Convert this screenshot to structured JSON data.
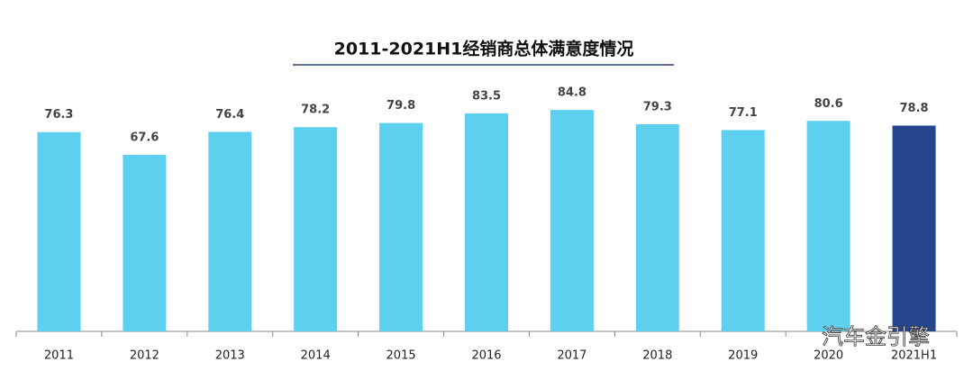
{
  "chart_data": {
    "type": "bar",
    "title": "2011-2021H1经销商总体满意度情况",
    "categories": [
      "2011",
      "2012",
      "2013",
      "2014",
      "2015",
      "2016",
      "2017",
      "2018",
      "2019",
      "2020",
      "2021H1"
    ],
    "values": [
      76.3,
      67.6,
      76.4,
      78.2,
      79.8,
      83.5,
      84.8,
      79.3,
      77.1,
      80.6,
      78.8
    ],
    "colors": [
      "#5ed0ef",
      "#5ed0ef",
      "#5ed0ef",
      "#5ed0ef",
      "#5ed0ef",
      "#5ed0ef",
      "#5ed0ef",
      "#5ed0ef",
      "#5ed0ef",
      "#5ed0ef",
      "#25468f"
    ],
    "watermark": "汽车金引擎"
  }
}
